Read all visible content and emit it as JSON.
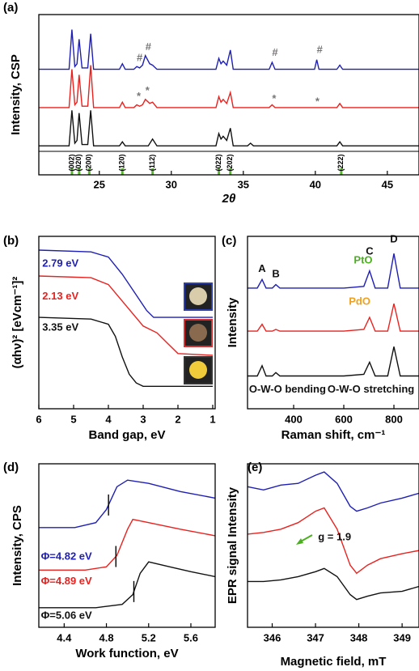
{
  "chart_data": [
    {
      "type": "line",
      "panel": "(a)",
      "xlabel": "2θ",
      "ylabel": "Intensity, CSP",
      "xlim": [
        20.8,
        47.2
      ],
      "xticks": [
        25,
        30,
        35,
        40,
        45
      ],
      "ylim": [
        0,
        100
      ],
      "series": [
        {
          "color": "#1f1fb4",
          "x": [
            20.8,
            22.9,
            23.1,
            23.3,
            23.45,
            23.6,
            23.8,
            24.2,
            24.4,
            24.6,
            26.4,
            26.6,
            26.8,
            27.4,
            27.6,
            27.8,
            28.0,
            28.2,
            28.5,
            28.7,
            29.0,
            33.1,
            33.3,
            33.45,
            33.6,
            33.85,
            34.1,
            34.3,
            36.8,
            37.0,
            37.2,
            39.95,
            40.1,
            40.25,
            41.5,
            41.7,
            41.9,
            47.2
          ],
          "values": [
            60,
            60,
            89,
            62,
            64,
            82,
            61,
            61,
            86,
            60,
            60,
            64,
            60,
            60,
            62,
            61,
            63,
            70,
            64,
            63,
            60,
            60,
            68,
            64,
            66,
            63,
            74,
            60,
            60,
            65,
            60,
            60,
            67,
            60,
            60,
            63,
            60,
            60
          ]
        },
        {
          "color": "#e8221f",
          "x": [
            20.8,
            22.9,
            23.1,
            23.3,
            23.45,
            23.6,
            23.8,
            24.2,
            24.4,
            24.6,
            26.4,
            26.6,
            26.8,
            27.4,
            27.6,
            27.8,
            28.0,
            28.2,
            28.5,
            28.7,
            29.0,
            33.1,
            33.3,
            33.45,
            33.6,
            33.85,
            34.1,
            34.3,
            36.8,
            37.0,
            37.2,
            41.5,
            41.7,
            41.9,
            47.2
          ],
          "values": [
            32,
            32,
            60,
            34,
            36,
            56,
            33,
            33,
            63,
            32,
            32,
            36,
            32,
            32,
            34,
            33,
            34,
            38,
            35,
            36,
            32,
            32,
            40,
            36,
            38,
            35,
            43,
            32,
            32,
            34,
            32,
            32,
            35,
            32,
            32
          ]
        },
        {
          "color": "#111111",
          "x": [
            20.8,
            22.9,
            23.1,
            23.3,
            23.45,
            23.6,
            23.8,
            24.2,
            24.4,
            24.6,
            26.4,
            26.6,
            26.8,
            28.4,
            28.7,
            29.0,
            33.1,
            33.3,
            33.45,
            33.6,
            33.85,
            34.1,
            34.3,
            35.3,
            35.5,
            35.7,
            41.5,
            41.7,
            41.9,
            47.2
          ],
          "values": [
            4,
            4,
            30,
            6,
            8,
            28,
            5,
            5,
            30,
            4,
            4,
            7,
            4,
            4,
            9,
            4,
            4,
            13,
            9,
            11,
            8,
            17,
            4,
            4,
            6,
            4,
            4,
            7,
            4,
            4
          ]
        }
      ],
      "annotations": [
        {
          "text": "#",
          "x": 27.6,
          "y": 68,
          "color": "#777777"
        },
        {
          "text": "#",
          "x": 28.2,
          "y": 76,
          "color": "#777777"
        },
        {
          "text": "#",
          "x": 37.0,
          "y": 72,
          "color": "#777777"
        },
        {
          "text": "#",
          "x": 40.1,
          "y": 74,
          "color": "#777777"
        },
        {
          "text": "*",
          "x": 27.6,
          "y": 40,
          "color": "#777777"
        },
        {
          "text": "*",
          "x": 28.2,
          "y": 44,
          "color": "#777777"
        },
        {
          "text": "*",
          "x": 37.0,
          "y": 38,
          "color": "#777777"
        },
        {
          "text": "*",
          "x": 40.0,
          "y": 36,
          "color": "#777777"
        }
      ],
      "reference_lines": {
        "color": "#5cb832",
        "positions": [
          23.1,
          23.6,
          24.3,
          26.6,
          28.7,
          33.3,
          34.1,
          41.8
        ],
        "labels": [
          "(002)",
          "(020)",
          "(200)",
          "(120)",
          "(112)",
          "(022)",
          "(202)",
          "(222)"
        ]
      }
    },
    {
      "type": "line",
      "panel": "(b)",
      "xlabel": "Band gap, eV",
      "ylabel": "(αhν)² [eVcm⁻¹]²",
      "xlim": [
        6,
        0.93
      ],
      "xticks": [
        6,
        5,
        4,
        3,
        2,
        1
      ],
      "ylim": [
        0,
        100
      ],
      "series": [
        {
          "color": "#1f1fb4",
          "x": [
            6,
            4.5,
            4.0,
            3.6,
            3.2,
            2.9,
            2.7,
            1.0
          ],
          "values": [
            92,
            91,
            88,
            78,
            66,
            57,
            53,
            53
          ]
        },
        {
          "color": "#e8221f",
          "x": [
            6,
            4.5,
            4.0,
            3.5,
            3.0,
            2.6,
            2.3,
            2.0,
            1.0
          ],
          "values": [
            77,
            76,
            72,
            60,
            48,
            44,
            38,
            32,
            31
          ]
        },
        {
          "color": "#111111",
          "x": [
            6,
            4.5,
            4.0,
            3.8,
            3.6,
            3.4,
            3.2,
            3.0,
            1.0
          ],
          "values": [
            53,
            52,
            49,
            42,
            30,
            20,
            15,
            13,
            13
          ]
        }
      ],
      "annotations": [
        {
          "text": "2.79 eV",
          "x": 5.9,
          "y": 84,
          "color": "#1f1fb4"
        },
        {
          "text": "2.13 eV",
          "x": 5.9,
          "y": 65,
          "color": "#e8221f"
        },
        {
          "text": "3.35 eV",
          "x": 5.9,
          "y": 47,
          "color": "#111111"
        }
      ]
    },
    {
      "type": "line",
      "panel": "(c)",
      "xlabel": "Raman shift, cm⁻¹",
      "ylabel": "Intensity",
      "xlim": [
        216,
        900
      ],
      "xticks": [
        400,
        600,
        800
      ],
      "ylim": [
        0,
        100
      ],
      "series": [
        {
          "color": "#1f1fb4",
          "x": [
            216,
            255,
            274,
            290,
            315,
            329,
            345,
            600,
            680,
            703,
            725,
            775,
            800,
            825,
            900
          ],
          "values": [
            70,
            70,
            75,
            70,
            70,
            72,
            70,
            70,
            71,
            80,
            70,
            70,
            90,
            70,
            70
          ]
        },
        {
          "color": "#e8221f",
          "x": [
            216,
            255,
            274,
            290,
            315,
            329,
            345,
            600,
            680,
            703,
            725,
            775,
            800,
            825,
            900
          ],
          "values": [
            45,
            45,
            49,
            45,
            45,
            46,
            45,
            45,
            46,
            53,
            45,
            45,
            61,
            45,
            45
          ]
        },
        {
          "color": "#111111",
          "x": [
            216,
            255,
            274,
            290,
            315,
            329,
            345,
            600,
            680,
            703,
            725,
            775,
            800,
            825,
            900
          ],
          "values": [
            19,
            19,
            25,
            19,
            19,
            21,
            19,
            19,
            20,
            27,
            19,
            19,
            36,
            19,
            19
          ]
        }
      ],
      "annotations": [
        {
          "text": "A",
          "x": 274,
          "y": 81,
          "color": "#111111"
        },
        {
          "text": "B",
          "x": 329,
          "y": 78,
          "color": "#111111"
        },
        {
          "text": "C",
          "x": 703,
          "y": 91,
          "color": "#111111"
        },
        {
          "text": "D",
          "x": 800,
          "y": 98,
          "color": "#111111"
        },
        {
          "text": "PtO",
          "x": 640,
          "y": 86,
          "color": "#4caf20"
        },
        {
          "text": "PdO",
          "x": 620,
          "y": 62,
          "color": "#f0a020"
        },
        {
          "text": "O-W-O bending",
          "x": 222,
          "y": 11,
          "color": "#111111"
        },
        {
          "text": "O-W-O stretching",
          "x": 535,
          "y": 11,
          "color": "#111111"
        }
      ]
    },
    {
      "type": "line",
      "panel": "(d)",
      "xlabel": "Work function, eV",
      "ylabel": "Intensity, CPS",
      "xlim": [
        4.16,
        5.83
      ],
      "xticks": [
        4.4,
        4.8,
        5.2,
        5.6
      ],
      "ylim": [
        0,
        100
      ],
      "series": [
        {
          "color": "#1f1fb4",
          "x": [
            4.16,
            4.5,
            4.7,
            4.8,
            4.9,
            5.0,
            5.2,
            5.5,
            5.83
          ],
          "values": [
            61,
            61,
            64,
            72,
            86,
            90,
            88,
            83,
            79
          ]
        },
        {
          "color": "#e8221f",
          "x": [
            4.16,
            4.6,
            4.8,
            4.9,
            5.0,
            5.05,
            5.2,
            5.5,
            5.83
          ],
          "values": [
            35,
            35,
            37,
            44,
            60,
            66,
            64,
            60,
            56
          ]
        },
        {
          "color": "#111111",
          "x": [
            4.16,
            4.7,
            4.95,
            5.05,
            5.12,
            5.2,
            5.4,
            5.6,
            5.83
          ],
          "values": [
            12,
            12,
            14,
            20,
            33,
            40,
            37,
            34,
            31
          ]
        }
      ],
      "markers": [
        {
          "value": 4.82,
          "label": "Φ=4.82 eV",
          "x": 4.18,
          "y": 43
        },
        {
          "value": 4.89,
          "label": "Φ=4.89 eV",
          "x": 4.18,
          "y": 28
        },
        {
          "value": 5.06,
          "label": "Φ=5.06 eV",
          "x": 4.18,
          "y": 7
        }
      ]
    },
    {
      "type": "line",
      "panel": "(e)",
      "xlabel": "Magnetic field, mT",
      "ylabel": "EPR signal Intensity",
      "xlim": [
        345.43,
        349.39
      ],
      "xticks": [
        346,
        347,
        348,
        349
      ],
      "ylim": [
        0,
        100
      ],
      "series": [
        {
          "color": "#1f1fb4",
          "x": [
            345.43,
            345.8,
            346.2,
            346.6,
            347.0,
            347.2,
            347.5,
            347.8,
            347.95,
            348.2,
            348.5,
            349.0,
            349.39
          ],
          "values": [
            86,
            84,
            87,
            88,
            93,
            95,
            88,
            74,
            71,
            73,
            76,
            79,
            82
          ]
        },
        {
          "color": "#e8221f",
          "x": [
            345.43,
            345.8,
            346.2,
            346.6,
            347.0,
            347.2,
            347.5,
            347.8,
            347.95,
            348.2,
            348.5,
            349.0,
            349.39
          ],
          "values": [
            57,
            58,
            60,
            64,
            71,
            73,
            60,
            38,
            33,
            38,
            42,
            45,
            47
          ]
        },
        {
          "color": "#111111",
          "x": [
            345.43,
            345.8,
            346.2,
            346.6,
            347.0,
            347.2,
            347.5,
            347.8,
            347.95,
            348.2,
            348.5,
            349.0,
            349.39
          ],
          "values": [
            28,
            28,
            29,
            31,
            34,
            36,
            31,
            20,
            17,
            19,
            21,
            22,
            25
          ]
        }
      ],
      "annotations": [
        {
          "text": "g = 1.9",
          "x": 347.06,
          "y": 55,
          "color": "#111111"
        }
      ]
    }
  ]
}
